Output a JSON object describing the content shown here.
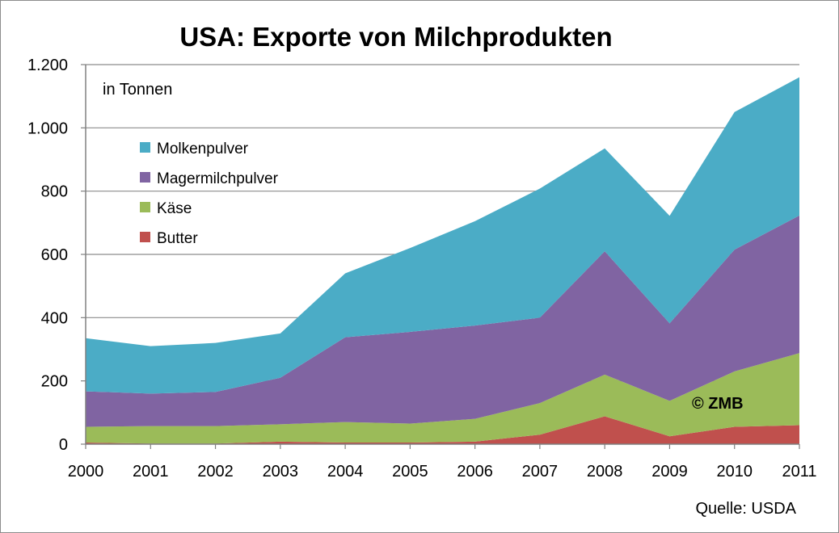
{
  "chart_data": {
    "type": "area",
    "stacked": true,
    "title": "USA: Exporte von Milchprodukten",
    "unit_note": "in Tonnen",
    "x": [
      "2000",
      "2001",
      "2002",
      "2003",
      "2004",
      "2005",
      "2006",
      "2007",
      "2008",
      "2009",
      "2010",
      "2011"
    ],
    "ylim": [
      0,
      1200
    ],
    "yticks": [
      0,
      200,
      400,
      600,
      800,
      1000,
      1200
    ],
    "ytick_labels": [
      "0",
      "200",
      "400",
      "600",
      "800",
      "1.000",
      "1.200"
    ],
    "grid": true,
    "legend_position": "top-left",
    "series": [
      {
        "name": "Butter",
        "color": "#c0504d",
        "values": [
          5,
          2,
          2,
          8,
          5,
          5,
          8,
          30,
          88,
          25,
          55,
          60
        ]
      },
      {
        "name": "Käse",
        "color": "#9bbb59",
        "values": [
          50,
          55,
          55,
          55,
          65,
          60,
          72,
          100,
          132,
          112,
          175,
          228
        ]
      },
      {
        "name": "Magermilchpulver",
        "color": "#8064a2",
        "values": [
          112,
          103,
          108,
          147,
          268,
          290,
          295,
          270,
          390,
          245,
          385,
          435
        ]
      },
      {
        "name": "Molkenpulver",
        "color": "#4bacc6",
        "values": [
          168,
          150,
          155,
          140,
          202,
          265,
          330,
          408,
          325,
          340,
          435,
          437
        ]
      }
    ],
    "legend_order": [
      "Molkenpulver",
      "Magermilchpulver",
      "Käse",
      "Butter"
    ],
    "watermark": "© ZMB",
    "source": "Quelle: USDA"
  }
}
